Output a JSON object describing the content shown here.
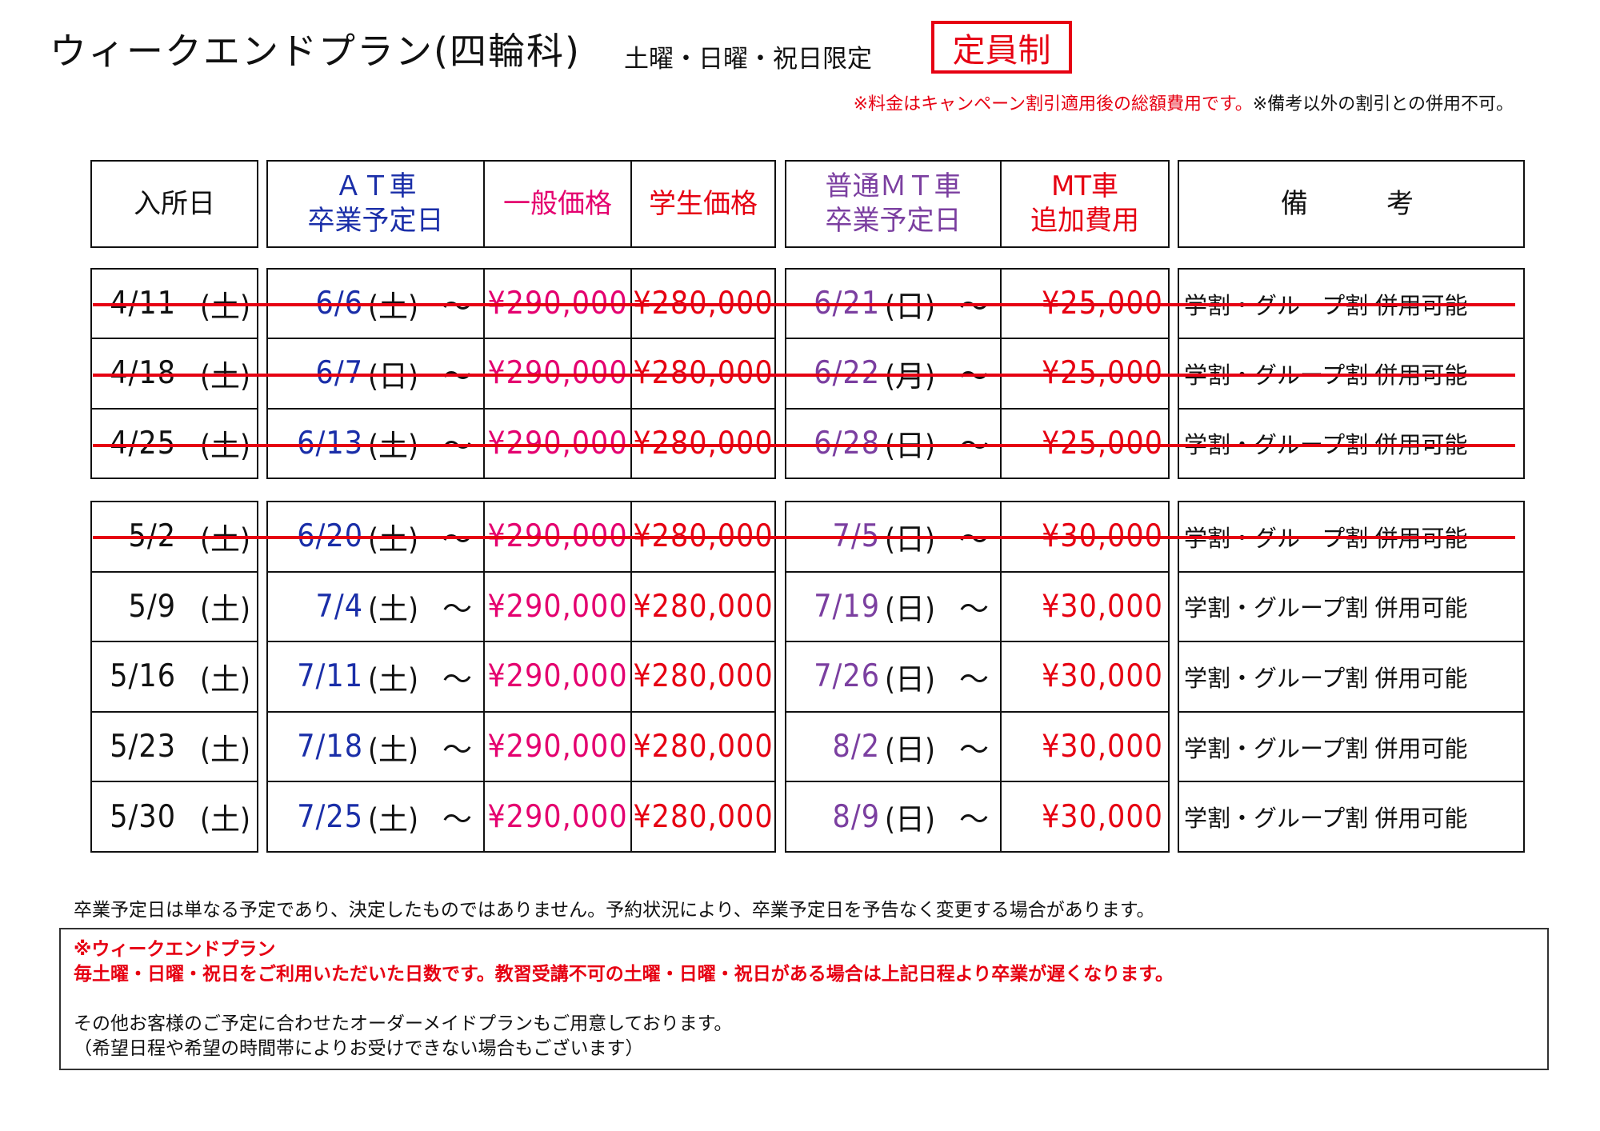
{
  "header": {
    "title": "ウィークエンドプラン(四輪科)",
    "subtitle": "土曜・日曜・祝日限定",
    "badge": "定員制",
    "price_note_red": "※料金はキャンペーン割引適用後の総額費用です。",
    "price_note_black": "※備考以外の割引との併用不可。"
  },
  "table": {
    "columns": {
      "entry": "入所日",
      "at_line1": "ＡＴ車",
      "at_line2": "卒業予定日",
      "general": "一般価格",
      "student": "学生価格",
      "mt_line1": "普通ＭＴ車",
      "mt_line2": "卒業予定日",
      "mtfee_line1": "MT車",
      "mtfee_line2": "追加費用",
      "remarks": "備　　考"
    },
    "weekday_tilde": "～",
    "groups": [
      {
        "rows": [
          {
            "entry": "4/11",
            "entry_dow": "(土)",
            "at_date": "6/6",
            "at_dow": "(土)",
            "general": "¥290,000",
            "student": "¥280,000",
            "mt_date": "6/21",
            "mt_dow": "(日)",
            "mt_fee": "¥25,000",
            "remarks": "学割・グループ割 併用可能",
            "closed": true
          },
          {
            "entry": "4/18",
            "entry_dow": "(土)",
            "at_date": "6/7",
            "at_dow": "(日)",
            "general": "¥290,000",
            "student": "¥280,000",
            "mt_date": "6/22",
            "mt_dow": "(月)",
            "mt_fee": "¥25,000",
            "remarks": "学割・グループ割 併用可能",
            "closed": true
          },
          {
            "entry": "4/25",
            "entry_dow": "(土)",
            "at_date": "6/13",
            "at_dow": "(土)",
            "general": "¥290,000",
            "student": "¥280,000",
            "mt_date": "6/28",
            "mt_dow": "(日)",
            "mt_fee": "¥25,000",
            "remarks": "学割・グループ割 併用可能",
            "closed": true
          }
        ]
      },
      {
        "rows": [
          {
            "entry": "5/2",
            "entry_dow": "(土)",
            "at_date": "6/20",
            "at_dow": "(土)",
            "general": "¥290,000",
            "student": "¥280,000",
            "mt_date": "7/5",
            "mt_dow": "(日)",
            "mt_fee": "¥30,000",
            "remarks": "学割・グループ割 併用可能",
            "closed": true
          },
          {
            "entry": "5/9",
            "entry_dow": "(土)",
            "at_date": "7/4",
            "at_dow": "(土)",
            "general": "¥290,000",
            "student": "¥280,000",
            "mt_date": "7/19",
            "mt_dow": "(日)",
            "mt_fee": "¥30,000",
            "remarks": "学割・グループ割 併用可能",
            "closed": false
          },
          {
            "entry": "5/16",
            "entry_dow": "(土)",
            "at_date": "7/11",
            "at_dow": "(土)",
            "general": "¥290,000",
            "student": "¥280,000",
            "mt_date": "7/26",
            "mt_dow": "(日)",
            "mt_fee": "¥30,000",
            "remarks": "学割・グループ割 併用可能",
            "closed": false
          },
          {
            "entry": "5/23",
            "entry_dow": "(土)",
            "at_date": "7/18",
            "at_dow": "(土)",
            "general": "¥290,000",
            "student": "¥280,000",
            "mt_date": "8/2",
            "mt_dow": "(日)",
            "mt_fee": "¥30,000",
            "remarks": "学割・グループ割 併用可能",
            "closed": false
          },
          {
            "entry": "5/30",
            "entry_dow": "(土)",
            "at_date": "7/25",
            "at_dow": "(土)",
            "general": "¥290,000",
            "student": "¥280,000",
            "mt_date": "8/9",
            "mt_dow": "(日)",
            "mt_fee": "¥30,000",
            "remarks": "学割・グループ割 併用可能",
            "closed": false
          }
        ]
      }
    ]
  },
  "footer": {
    "schedule_note": "卒業予定日は単なる予定であり、決定したものではありません。予約状況により、卒業予定日を予告なく変更する場合があります。",
    "notice_title": "※ウィークエンドプラン",
    "notice_body": "毎土曜・日曜・祝日をご利用いただいた日数です。教習受講不可の土曜・日曜・祝日がある場合は上記日程より卒業が遅くなります。",
    "custom_plan": "その他お客様のご予定に合わせたオーダーメイドプランもご用意しております。",
    "custom_plan_note": "（希望日程や希望の時間帯によりお受けできない場合もございます）"
  },
  "colors": {
    "accent_red": "#e60012",
    "at_blue": "#1a2ea8",
    "price_pink": "#e4006f",
    "mt_purple": "#7b3fa0"
  }
}
